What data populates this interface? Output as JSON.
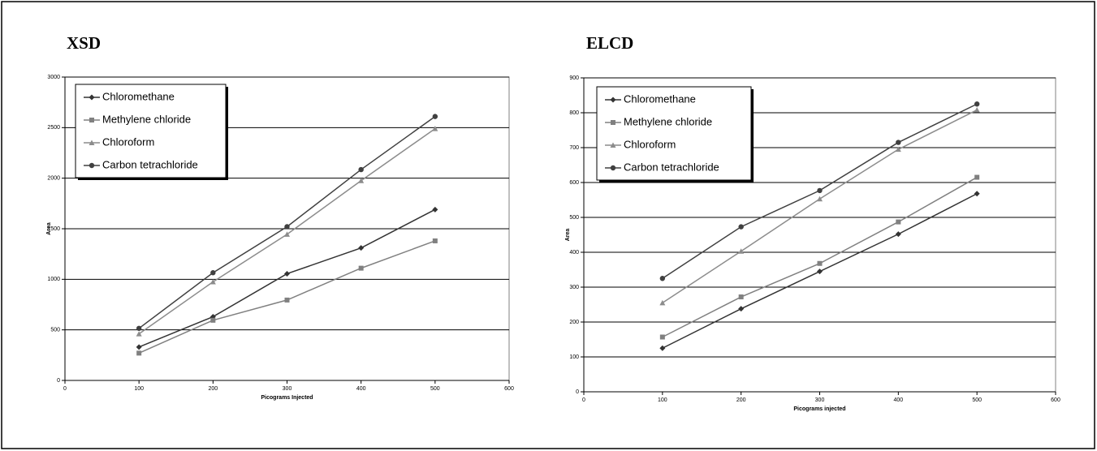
{
  "chart_data": [
    {
      "type": "line",
      "title": "XSD",
      "x_label": "Picograms Injected",
      "y_label": "Area",
      "x": [
        100,
        200,
        300,
        400,
        500
      ],
      "series": [
        {
          "name": "Chloromethane",
          "color": "#333333",
          "marker": "diamond",
          "values": [
            330,
            630,
            1055,
            1310,
            1690
          ]
        },
        {
          "name": "Methylene chloride",
          "color": "#808080",
          "marker": "square",
          "values": [
            270,
            595,
            795,
            1110,
            1380
          ]
        },
        {
          "name": "Chloroform",
          "color": "#8c8c8c",
          "marker": "triangle",
          "values": [
            460,
            975,
            1445,
            1975,
            2490
          ]
        },
        {
          "name": "Carbon tetrachloride",
          "color": "#404040",
          "marker": "circle",
          "values": [
            515,
            1065,
            1520,
            2085,
            2610
          ]
        }
      ],
      "xlim": [
        0,
        600
      ],
      "xticks": [
        0,
        100,
        200,
        300,
        400,
        500,
        600
      ],
      "ylim": [
        0,
        3000
      ],
      "yticks": [
        0,
        500,
        1000,
        1500,
        2000,
        2500,
        3000
      ],
      "grid": true,
      "legend": "upper left"
    },
    {
      "type": "line",
      "title": "ELCD",
      "x_label": "Picograms injected",
      "y_label": "Area",
      "x": [
        100,
        200,
        300,
        400,
        500
      ],
      "series": [
        {
          "name": "Chloromethane",
          "color": "#333333",
          "marker": "diamond",
          "values": [
            125,
            238,
            345,
            452,
            568
          ]
        },
        {
          "name": "Methylene chloride",
          "color": "#808080",
          "marker": "square",
          "values": [
            157,
            272,
            368,
            487,
            615
          ]
        },
        {
          "name": "Chloroform",
          "color": "#8c8c8c",
          "marker": "triangle",
          "values": [
            255,
            403,
            553,
            695,
            808
          ]
        },
        {
          "name": "Carbon tetrachloride",
          "color": "#404040",
          "marker": "circle",
          "values": [
            325,
            473,
            577,
            715,
            825
          ]
        }
      ],
      "xlim": [
        0,
        600
      ],
      "xticks": [
        0,
        100,
        200,
        300,
        400,
        500,
        600
      ],
      "ylim": [
        0,
        900
      ],
      "yticks": [
        0,
        100,
        200,
        300,
        400,
        500,
        600,
        700,
        800,
        900
      ],
      "grid": true,
      "legend": "upper left"
    }
  ]
}
